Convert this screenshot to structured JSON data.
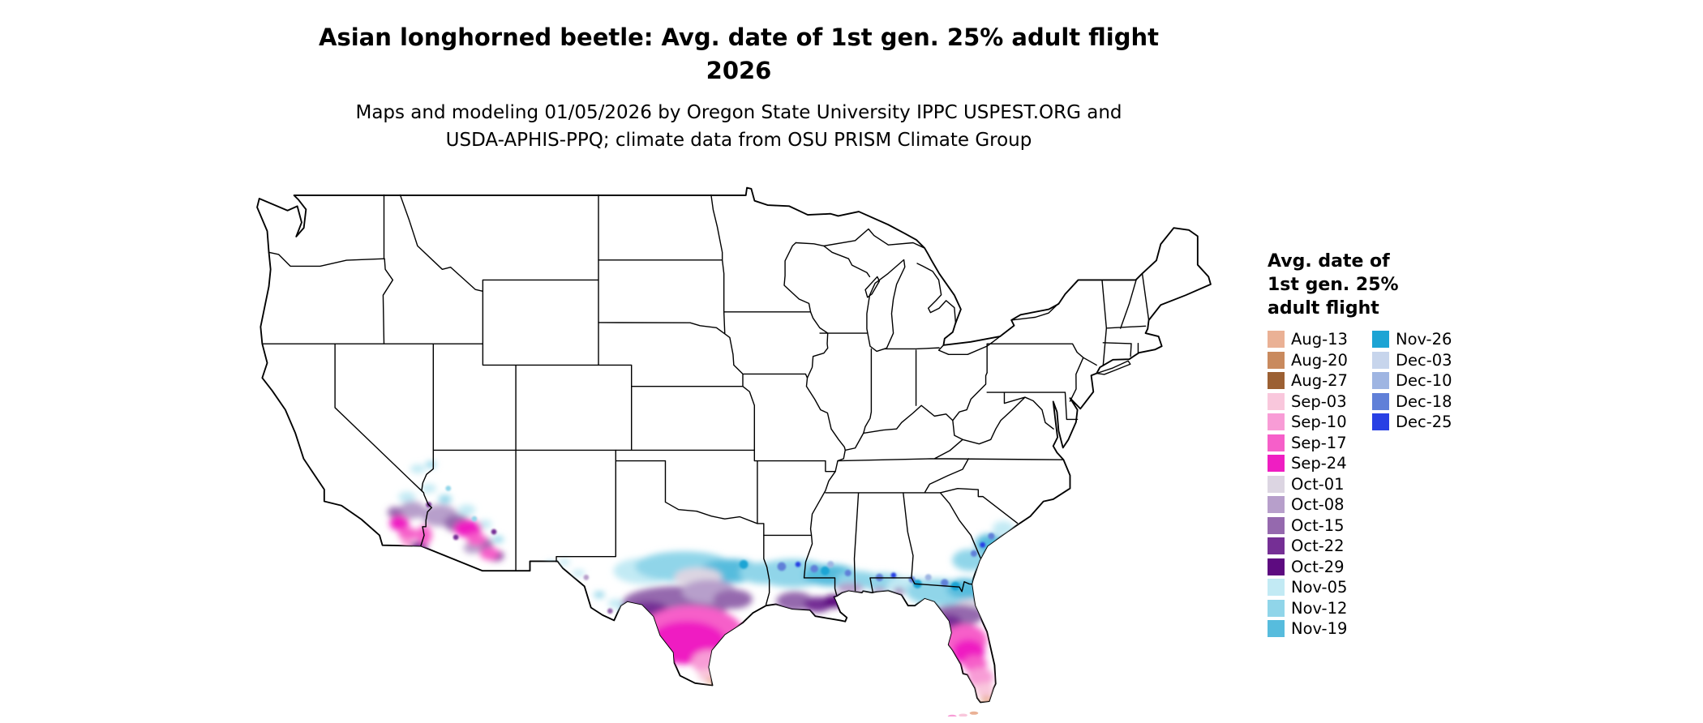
{
  "title": {
    "line1": "Asian longhorned beetle: Avg. date of 1st gen. 25% adult flight",
    "line2": "2026"
  },
  "subtitle": {
    "line1": "Maps and modeling 01/05/2026 by Oregon State University IPPC USPEST.ORG and",
    "line2": "USDA-APHIS-PPQ; climate data from OSU PRISM Climate Group"
  },
  "legend": {
    "title_lines": [
      "Avg. date of",
      "1st gen. 25%",
      "adult flight"
    ],
    "column1": [
      {
        "label": "Aug-13",
        "color": "#eab195"
      },
      {
        "label": "Aug-20",
        "color": "#c98a5e"
      },
      {
        "label": "Aug-27",
        "color": "#9c6033"
      },
      {
        "label": "Sep-03",
        "color": "#f9c7dc"
      },
      {
        "label": "Sep-10",
        "color": "#f89cd6"
      },
      {
        "label": "Sep-17",
        "color": "#f65fc9"
      },
      {
        "label": "Sep-24",
        "color": "#ef1ec2"
      },
      {
        "label": "Oct-01",
        "color": "#dcd5e2"
      },
      {
        "label": "Oct-08",
        "color": "#b79fcb"
      },
      {
        "label": "Oct-15",
        "color": "#9569ae"
      },
      {
        "label": "Oct-22",
        "color": "#752f95"
      },
      {
        "label": "Oct-29",
        "color": "#5d0b80"
      },
      {
        "label": "Nov-05",
        "color": "#c2eaf4"
      },
      {
        "label": "Nov-12",
        "color": "#90d5e9"
      },
      {
        "label": "Nov-19",
        "color": "#57bcdd"
      }
    ],
    "column2": [
      {
        "label": "Nov-26",
        "color": "#1da4d4"
      },
      {
        "label": "Dec-03",
        "color": "#c7d5ec"
      },
      {
        "label": "Dec-10",
        "color": "#9fb5e2"
      },
      {
        "label": "Dec-18",
        "color": "#6080d8"
      },
      {
        "label": "Dec-25",
        "color": "#2840e4"
      }
    ]
  },
  "map": {
    "description": "Contiguous United States with state borders; colored raster regions in the desert Southwest, south Texas, Gulf Coast states and Florida indicate average date of first generation 25% adult flight."
  }
}
